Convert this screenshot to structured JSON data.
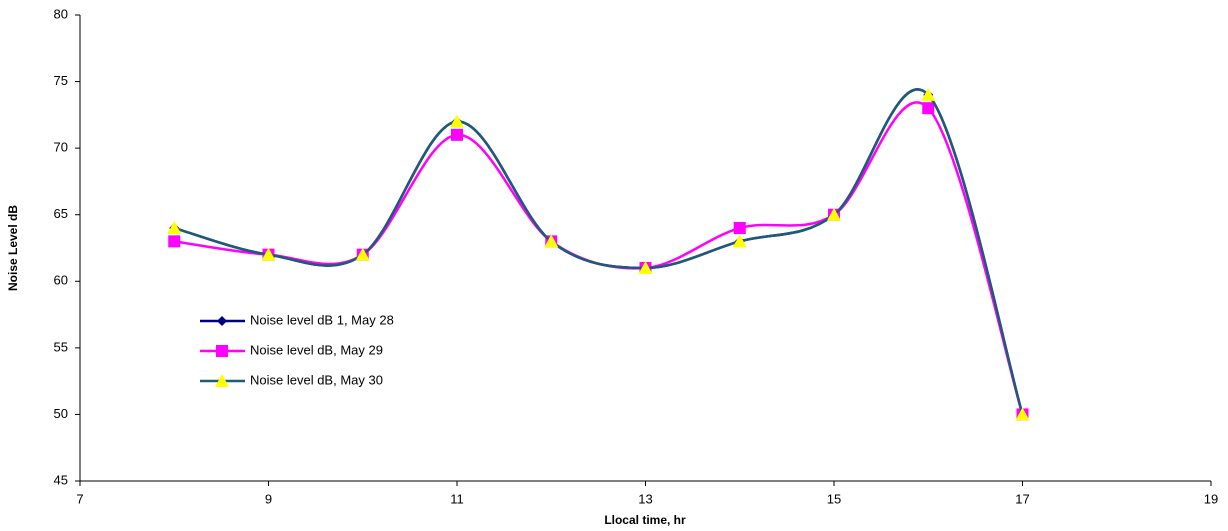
{
  "chart_data": {
    "type": "line",
    "x_label": "Llocal time, hr",
    "y_label": "Noise Level dB",
    "x": [
      8,
      9,
      10,
      11,
      12,
      13,
      14,
      15,
      16,
      17
    ],
    "series": [
      {
        "name": "Noise level dB 1, May 28",
        "color": "#000080",
        "marker": "diamond",
        "marker_color": "#000080",
        "values": [
          64,
          62,
          62,
          72,
          63,
          61,
          63,
          65,
          74,
          50
        ]
      },
      {
        "name": "Noise level dB, May 29",
        "color": "#ff00ff",
        "marker": "square",
        "marker_color": "#ff00ff",
        "values": [
          63,
          62,
          62,
          71,
          63,
          61,
          64,
          65,
          73,
          50
        ]
      },
      {
        "name": "Noise level dB, May 30",
        "color": "#1f5a78",
        "marker": "triangle",
        "marker_color": "#ffff00",
        "values": [
          64,
          62,
          62,
          72,
          63,
          61,
          63,
          65,
          74,
          50
        ]
      }
    ],
    "xlim": [
      7,
      19
    ],
    "xticks": [
      7,
      9,
      11,
      13,
      15,
      17,
      19
    ],
    "ylim": [
      45,
      80
    ],
    "yticks": [
      45,
      50,
      55,
      60,
      65,
      70,
      75,
      80
    ],
    "smooth": true,
    "grid": false
  }
}
